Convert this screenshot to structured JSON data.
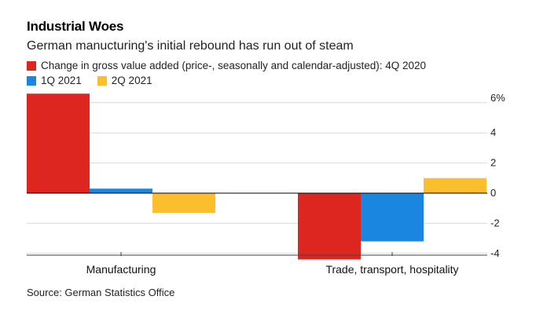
{
  "title": "Industrial Woes",
  "subtitle": "German manucturing's initial rebound has run out of steam",
  "source": "Source: German Statistics Office",
  "colors": {
    "s1": "#dc261f",
    "s2": "#1a86e0",
    "s3": "#fbbf2d",
    "grid": "#d8d8d8",
    "zero": "#000000"
  },
  "chart_data": {
    "type": "bar",
    "title": "Industrial Woes",
    "subtitle": "German manucturing's initial rebound has run out of steam",
    "categories": [
      "Manufacturing",
      "Trade, transport, hospitality"
    ],
    "series": [
      {
        "name": "Change in gross value added (price-, seasonally and calendar-adjusted): 4Q 2020",
        "color": "#dc261f",
        "values": [
          6.6,
          -4.4
        ]
      },
      {
        "name": "1Q 2021",
        "color": "#1a86e0",
        "values": [
          0.3,
          -3.2
        ]
      },
      {
        "name": "2Q 2021",
        "color": "#fbbf2d",
        "values": [
          -1.3,
          1.0
        ]
      }
    ],
    "ylim": [
      -4.5,
      6.6
    ],
    "yticks": [
      6,
      4,
      2,
      0,
      -2,
      -4
    ],
    "ytick_labels": [
      "6%",
      "4",
      "2",
      "0",
      "-2",
      "-4"
    ],
    "xlabel": "",
    "ylabel": "",
    "grid": true,
    "legend_position": "top-left",
    "y_axis_side": "right"
  }
}
